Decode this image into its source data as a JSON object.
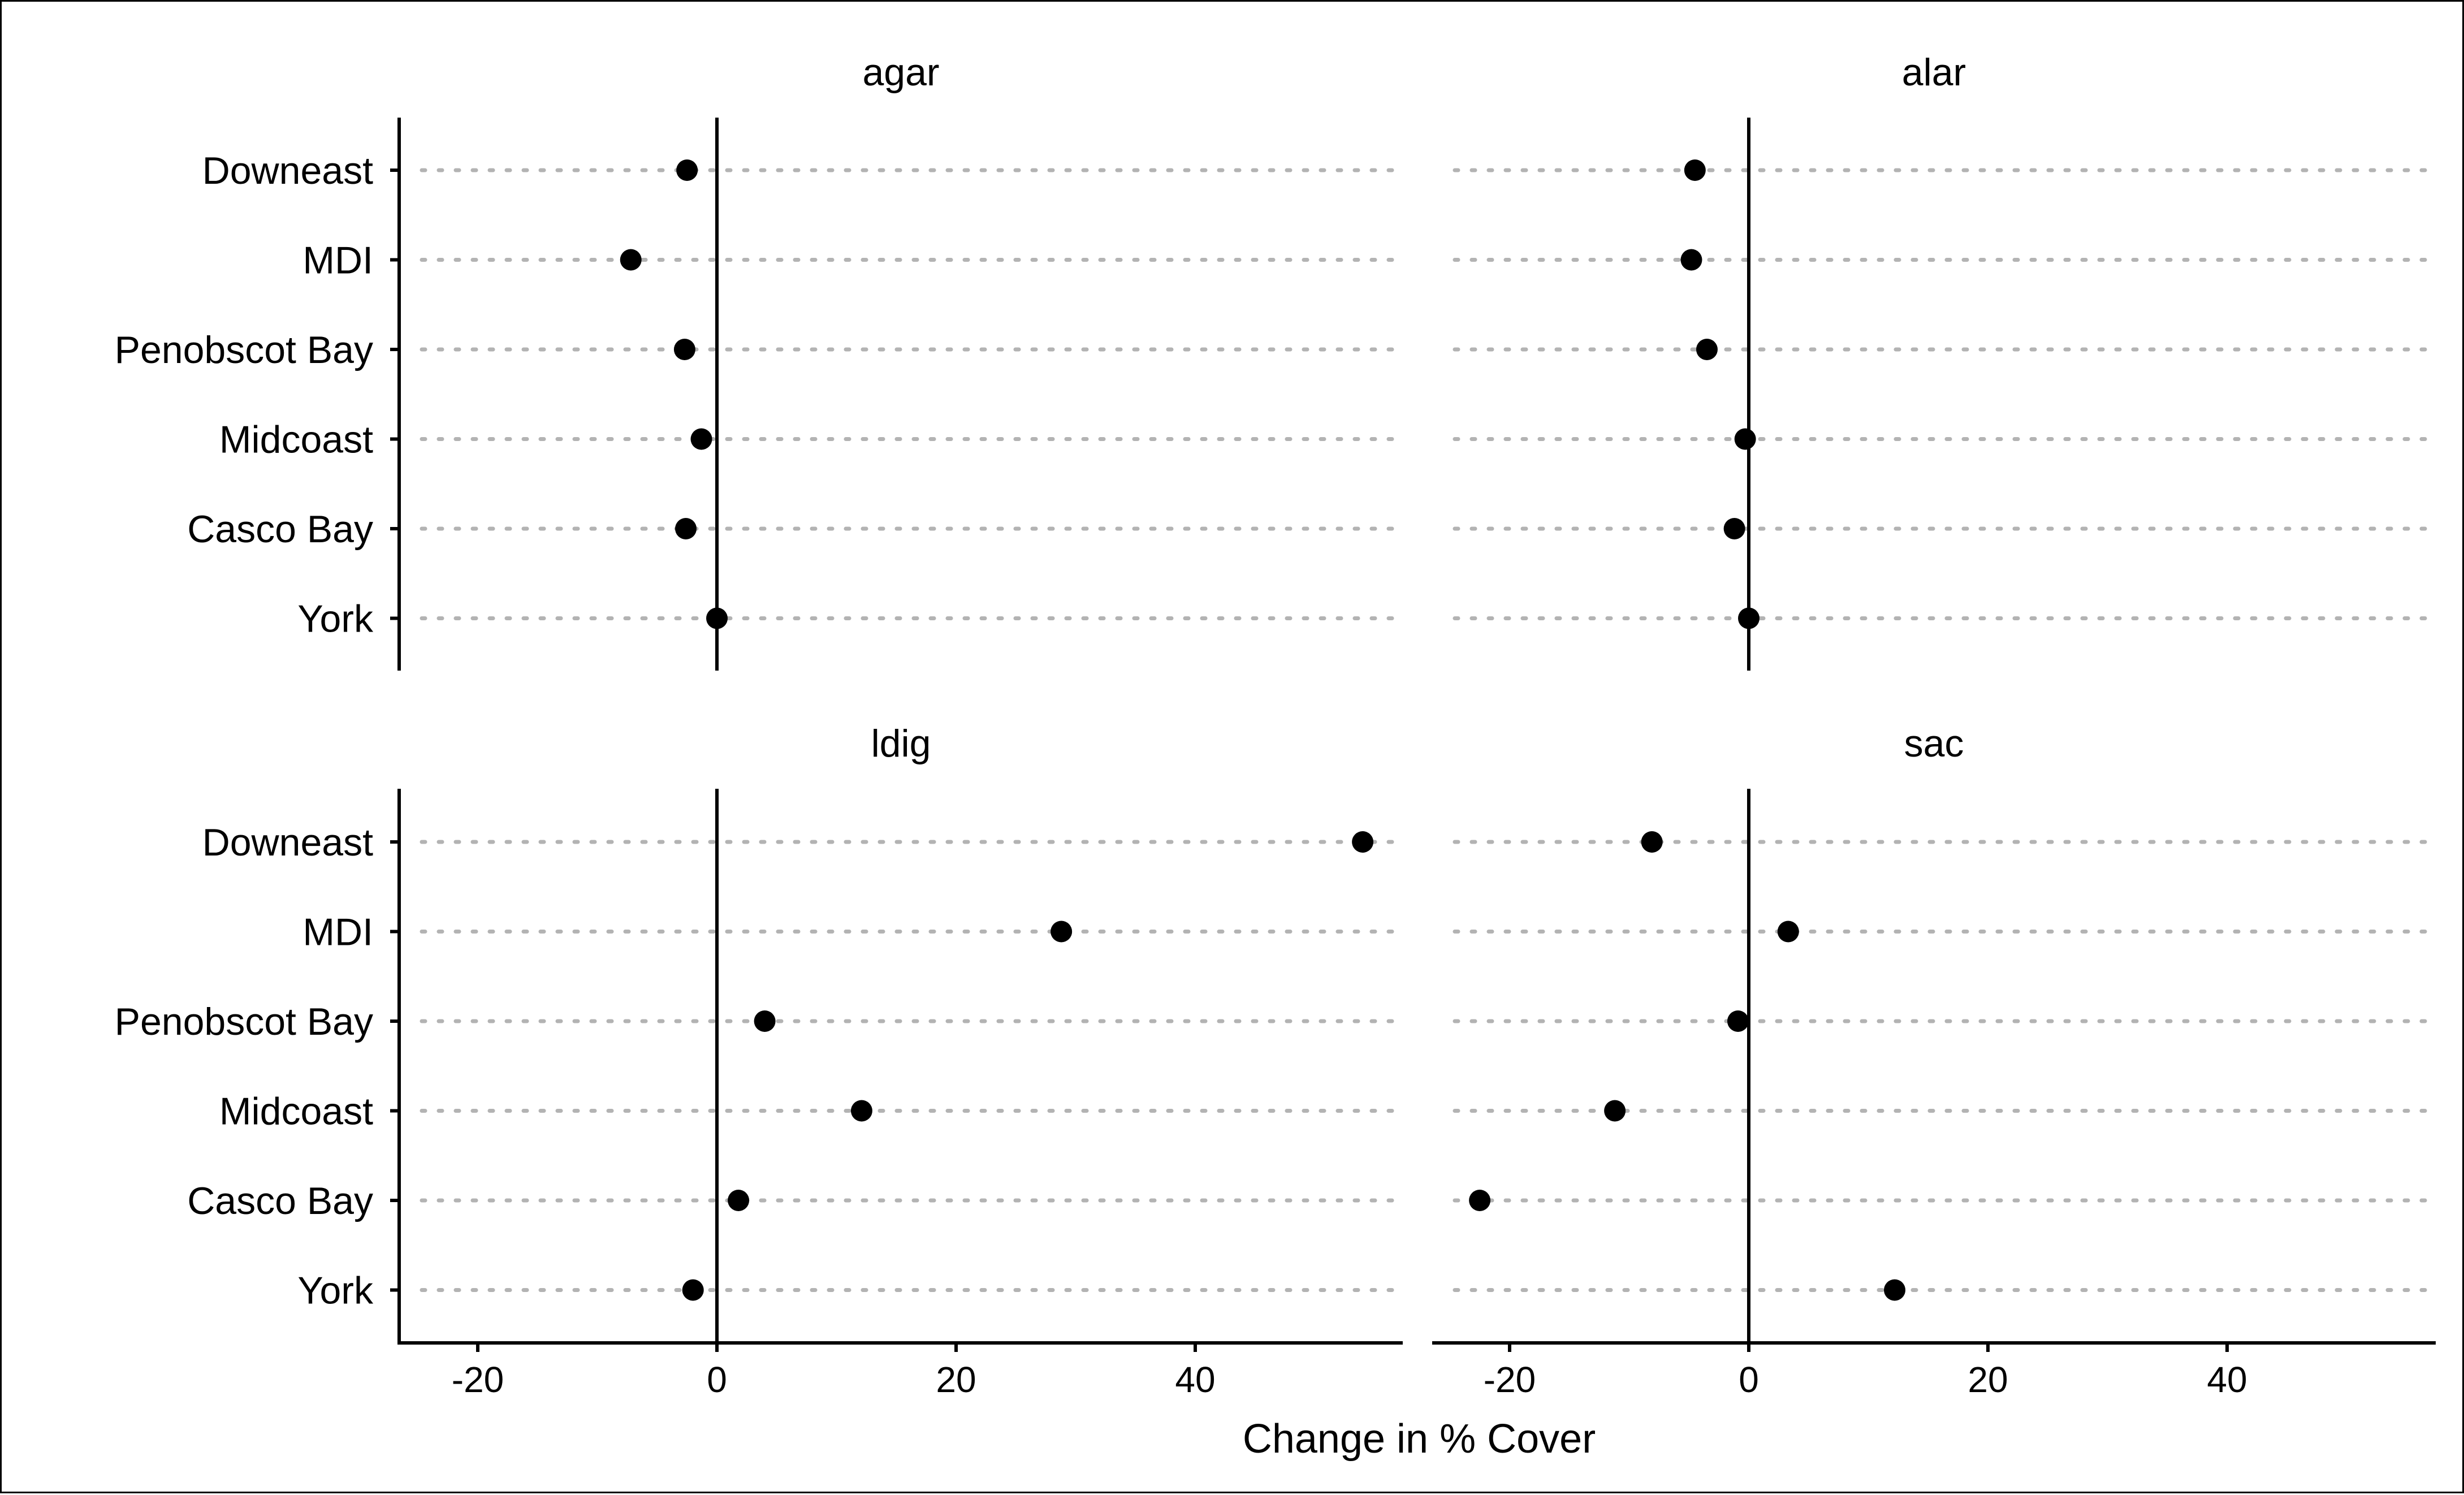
{
  "chart_data": {
    "type": "scatter",
    "xlabel": "Change in % Cover",
    "ylabel": "",
    "xlim": [
      -26.5,
      57
    ],
    "x_ticks": [
      -20,
      0,
      20,
      40
    ],
    "x_tick_labels": [
      "-20",
      "0",
      "20",
      "40"
    ],
    "categories": [
      "Downeast",
      "MDI",
      "Penobscot Bay",
      "Midcoast",
      "Casco Bay",
      "York"
    ],
    "grid": "dotted horizontal",
    "legend": "none",
    "colors": {
      "points": "#000000",
      "gridlines": "#b3b3b3",
      "axes": "#000000"
    },
    "panels": [
      {
        "title": "agar",
        "values": [
          -2.5,
          -7.2,
          -2.7,
          -1.3,
          -2.6,
          0.0
        ]
      },
      {
        "title": "alar",
        "values": [
          -4.5,
          -4.8,
          -3.5,
          -0.3,
          -1.2,
          0.0
        ]
      },
      {
        "title": "ldig",
        "values": [
          54.0,
          28.8,
          4.0,
          12.1,
          1.8,
          -2.0
        ]
      },
      {
        "title": "sac",
        "values": [
          -8.1,
          3.3,
          -0.9,
          -11.2,
          -22.5,
          12.2
        ]
      }
    ]
  }
}
